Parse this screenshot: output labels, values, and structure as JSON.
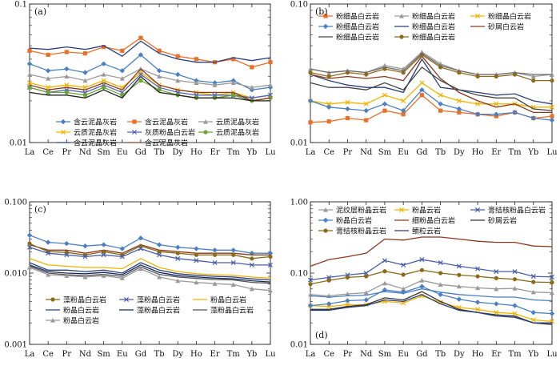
{
  "figure": {
    "background": "#ffffff"
  },
  "chart_data": [
    {
      "type": "line",
      "panel_label": "(a)",
      "log_scale": true,
      "ylim": [
        0.01,
        0.1
      ],
      "yticks": [
        "0.1",
        "0.01"
      ],
      "categories": [
        "La",
        "Ce",
        "Pr",
        "Nd",
        "Sm",
        "Eu",
        "Gd",
        "Tb",
        "Dy",
        "Ho",
        "Er",
        "Tm",
        "Yb",
        "Lu"
      ],
      "legend_position": "bottom",
      "series": [
        {
          "name": "含云泥晶灰岩",
          "color": "#4a7fc1",
          "marker": "diamond",
          "values": [
            0.037,
            0.033,
            0.034,
            0.032,
            0.037,
            0.033,
            0.043,
            0.033,
            0.031,
            0.028,
            0.027,
            0.028,
            0.024,
            0.025
          ]
        },
        {
          "name": "含云泥晶灰岩",
          "color": "#e8702a",
          "marker": "square",
          "values": [
            0.046,
            0.043,
            0.045,
            0.044,
            0.049,
            0.046,
            0.057,
            0.046,
            0.042,
            0.04,
            0.038,
            0.04,
            0.035,
            0.038
          ]
        },
        {
          "name": "云质泥晶灰岩",
          "color": "#9a9a9a",
          "marker": "triangle",
          "values": [
            0.031,
            0.029,
            0.03,
            0.028,
            0.031,
            0.029,
            0.034,
            0.03,
            0.028,
            0.027,
            0.026,
            0.027,
            0.025,
            0.026
          ]
        },
        {
          "name": "云质泥晶灰岩",
          "color": "#f0b400",
          "marker": "x",
          "values": [
            0.027,
            0.025,
            0.026,
            0.025,
            0.028,
            0.025,
            0.032,
            0.026,
            0.024,
            0.023,
            0.022,
            0.023,
            0.021,
            0.022
          ]
        },
        {
          "name": "灰质粉晶白云岩",
          "color": "#5566b0",
          "marker": "x",
          "values": [
            0.025,
            0.023,
            0.024,
            0.023,
            0.026,
            0.023,
            0.031,
            0.025,
            0.023,
            0.022,
            0.022,
            0.022,
            0.021,
            0.022
          ]
        },
        {
          "name": "云质泥晶灰岩",
          "color": "#6ca533",
          "marker": "circle",
          "values": [
            0.025,
            0.023,
            0.023,
            0.022,
            0.025,
            0.022,
            0.028,
            0.024,
            0.022,
            0.021,
            0.021,
            0.022,
            0.02,
            0.021
          ]
        },
        {
          "name": "含云泥晶灰岩",
          "color": "#2a3f7a",
          "marker": "none",
          "values": [
            0.048,
            0.047,
            0.049,
            0.047,
            0.05,
            0.042,
            0.054,
            0.044,
            0.04,
            0.038,
            0.038,
            0.041,
            0.039,
            0.041
          ]
        },
        {
          "name": "含云泥晶灰岩",
          "color": "#8b3a1e",
          "marker": "none",
          "values": [
            0.026,
            0.024,
            0.025,
            0.024,
            0.027,
            0.024,
            0.034,
            0.026,
            0.024,
            0.023,
            0.023,
            0.023,
            0.02,
            0.021
          ]
        },
        {
          "name": "",
          "color": "#222222",
          "marker": "none",
          "values": [
            0.023,
            0.022,
            0.022,
            0.021,
            0.024,
            0.021,
            0.03,
            0.023,
            0.022,
            0.021,
            0.021,
            0.021,
            0.02,
            0.02
          ]
        }
      ]
    },
    {
      "type": "line",
      "panel_label": "(b)",
      "log_scale": true,
      "ylim": [
        0.01,
        0.1
      ],
      "yticks": [
        "0.10",
        "0.01"
      ],
      "categories": [
        "La",
        "Ce",
        "Pr",
        "Nd",
        "Sm",
        "Eu",
        "Gd",
        "Tb",
        "Dy",
        "Ho",
        "Er",
        "Tm",
        "Yb",
        "Lu"
      ],
      "legend_position": "top",
      "series": [
        {
          "name": "粉细晶白云岩",
          "color": "#e8702a",
          "marker": "square",
          "values": [
            0.014,
            0.0142,
            0.015,
            0.0145,
            0.017,
            0.016,
            0.022,
            0.017,
            0.0165,
            0.016,
            0.0155,
            0.0165,
            0.015,
            0.0155
          ]
        },
        {
          "name": "粉细晶白云岩",
          "color": "#9a9a9a",
          "marker": "triangle",
          "values": [
            0.034,
            0.032,
            0.033,
            0.032,
            0.036,
            0.034,
            0.045,
            0.037,
            0.033,
            0.031,
            0.031,
            0.032,
            0.03,
            0.031
          ]
        },
        {
          "name": "粉细晶白云岩",
          "color": "#f0b400",
          "marker": "x",
          "values": [
            0.02,
            0.019,
            0.0195,
            0.019,
            0.022,
            0.02,
            0.027,
            0.022,
            0.02,
            0.019,
            0.019,
            0.019,
            0.018,
            0.018
          ]
        },
        {
          "name": "粉细晶白云岩",
          "color": "#4a7fc1",
          "marker": "diamond",
          "values": [
            0.02,
            0.018,
            0.0175,
            0.017,
            0.019,
            0.017,
            0.024,
            0.019,
            0.0175,
            0.016,
            0.016,
            0.0165,
            0.015,
            0.0145
          ]
        },
        {
          "name": "粉细晶白云岩",
          "color": "#2a3f7a",
          "marker": "none",
          "values": [
            0.031,
            0.028,
            0.026,
            0.025,
            0.025,
            0.023,
            0.04,
            0.025,
            0.024,
            0.023,
            0.022,
            0.0225,
            0.02,
            0.019
          ]
        },
        {
          "name": "砂屑白云岩",
          "color": "#8b3a1e",
          "marker": "none",
          "values": [
            0.031,
            0.029,
            0.03,
            0.029,
            0.03,
            0.028,
            0.042,
            0.029,
            0.023,
            0.02,
            0.018,
            0.019,
            0.0165,
            0.0165
          ]
        },
        {
          "name": "粉细晶白云岩",
          "color": "#444444",
          "marker": "none",
          "values": [
            0.027,
            0.025,
            0.025,
            0.024,
            0.027,
            0.024,
            0.035,
            0.028,
            0.024,
            0.022,
            0.021,
            0.021,
            0.0175,
            0.017
          ]
        },
        {
          "name": "粉细晶白云岩",
          "color": "#8b6a1a",
          "marker": "circle",
          "values": [
            0.032,
            0.03,
            0.032,
            0.031,
            0.034,
            0.032,
            0.043,
            0.035,
            0.032,
            0.03,
            0.03,
            0.031,
            0.028,
            0.028
          ]
        },
        {
          "name": "",
          "color": "#6b6b6b",
          "marker": "none",
          "values": [
            0.034,
            0.032,
            0.033,
            0.032,
            0.035,
            0.033,
            0.044,
            0.036,
            0.033,
            0.031,
            0.031,
            0.032,
            0.031,
            0.031
          ]
        }
      ]
    },
    {
      "type": "line",
      "panel_label": "(c)",
      "log_scale": true,
      "ylim": [
        0.001,
        0.1
      ],
      "yticks": [
        "0.100",
        "0.010",
        "0.001"
      ],
      "categories": [
        "La",
        "Ce",
        "Pr",
        "Nd",
        "Sm",
        "Eu",
        "Gd",
        "Tb",
        "Dy",
        "Ho",
        "Er",
        "Tm",
        "Yb",
        "Lu"
      ],
      "legend_position": "bottom",
      "series": [
        {
          "name": "",
          "color": "#4a7fc1",
          "marker": "diamond",
          "values": [
            0.034,
            0.027,
            0.026,
            0.024,
            0.025,
            0.022,
            0.031,
            0.025,
            0.023,
            0.022,
            0.021,
            0.021,
            0.019,
            0.019
          ]
        },
        {
          "name": "",
          "color": "#8b3a1e",
          "marker": "none",
          "values": [
            0.025,
            0.021,
            0.021,
            0.019,
            0.021,
            0.019,
            0.025,
            0.021,
            0.02,
            0.019,
            0.019,
            0.019,
            0.018,
            0.018
          ]
        },
        {
          "name": "藻粉晶白云岩",
          "color": "#8b6a1a",
          "marker": "circle",
          "values": [
            0.026,
            0.02,
            0.0195,
            0.018,
            0.02,
            0.018,
            0.024,
            0.02,
            0.019,
            0.018,
            0.018,
            0.018,
            0.016,
            0.017
          ]
        },
        {
          "name": "藻粉晶白云岩",
          "color": "#4a5fa8",
          "marker": "x",
          "values": [
            0.023,
            0.019,
            0.018,
            0.017,
            0.018,
            0.017,
            0.022,
            0.018,
            0.016,
            0.015,
            0.014,
            0.014,
            0.013,
            0.013
          ]
        },
        {
          "name": "粉晶白云岩",
          "color": "#f0b400",
          "marker": "none",
          "values": [
            0.016,
            0.013,
            0.0125,
            0.012,
            0.012,
            0.0115,
            0.016,
            0.012,
            0.0105,
            0.0098,
            0.0095,
            0.0093,
            0.0088,
            0.0085
          ]
        },
        {
          "name": "粉晶白云岩",
          "color": "#2a3f7a",
          "marker": "none",
          "values": [
            0.014,
            0.011,
            0.011,
            0.0105,
            0.011,
            0.01,
            0.014,
            0.011,
            0.0098,
            0.0093,
            0.009,
            0.0088,
            0.0083,
            0.008
          ]
        },
        {
          "name": "藻粉晶白云岩",
          "color": "#1a2a5a",
          "marker": "none",
          "values": [
            0.013,
            0.0105,
            0.01,
            0.0098,
            0.0102,
            0.0095,
            0.013,
            0.0102,
            0.0092,
            0.0088,
            0.0085,
            0.0083,
            0.0078,
            0.0075
          ]
        },
        {
          "name": "藻粉晶白云岩",
          "color": "#555555",
          "marker": "none",
          "values": [
            0.0125,
            0.01,
            0.0095,
            0.0092,
            0.0096,
            0.009,
            0.0122,
            0.0096,
            0.0088,
            0.0084,
            0.0081,
            0.008,
            0.0074,
            0.0072
          ]
        },
        {
          "name": "粉晶白云岩",
          "color": "#9a9a9a",
          "marker": "triangle",
          "values": [
            0.012,
            0.0095,
            0.0092,
            0.0088,
            0.0092,
            0.0085,
            0.0115,
            0.0088,
            0.0078,
            0.0074,
            0.0071,
            0.0069,
            0.006,
            0.0057
          ]
        }
      ]
    },
    {
      "type": "line",
      "panel_label": "(d)",
      "log_scale": true,
      "ylim": [
        0.01,
        1.0
      ],
      "yticks": [
        "1.00",
        "0.10",
        "0.01"
      ],
      "categories": [
        "La",
        "Ce",
        "Pr",
        "Nd",
        "Sm",
        "Eu",
        "Gd",
        "Tb",
        "Dy",
        "Ho",
        "Er",
        "Tm",
        "Yb",
        "Lu"
      ],
      "legend_position": "top",
      "series": [
        {
          "name": "泥纹层粉晶云岩",
          "color": "#9a9a9a",
          "marker": "triangle",
          "values": [
            0.05,
            0.048,
            0.051,
            0.053,
            0.072,
            0.06,
            0.079,
            0.069,
            0.065,
            0.062,
            0.06,
            0.061,
            0.054,
            0.053
          ]
        },
        {
          "name": "粉晶云岩",
          "color": "#f0b400",
          "marker": "x",
          "values": [
            0.035,
            0.034,
            0.036,
            0.036,
            0.04,
            0.038,
            0.048,
            0.039,
            0.033,
            0.031,
            0.028,
            0.027,
            0.022,
            0.021
          ]
        },
        {
          "name": "膏结核粉晶白云岩",
          "color": "#4a5fa8",
          "marker": "x",
          "values": [
            0.08,
            0.087,
            0.094,
            0.1,
            0.15,
            0.13,
            0.155,
            0.14,
            0.125,
            0.115,
            0.105,
            0.105,
            0.09,
            0.088
          ]
        },
        {
          "name": "粉晶白云岩",
          "color": "#4a7fc1",
          "marker": "diamond",
          "values": [
            0.035,
            0.037,
            0.041,
            0.042,
            0.058,
            0.054,
            0.065,
            0.05,
            0.043,
            0.039,
            0.037,
            0.035,
            0.028,
            0.027
          ]
        },
        {
          "name": "细粉晶白云岩",
          "color": "#8b3a1e",
          "marker": "none",
          "values": [
            0.125,
            0.155,
            0.17,
            0.19,
            0.3,
            0.29,
            0.32,
            0.32,
            0.3,
            0.28,
            0.27,
            0.27,
            0.24,
            0.235
          ]
        },
        {
          "name": "砂屑云岩",
          "color": "#333333",
          "marker": "none",
          "values": [
            0.031,
            0.031,
            0.034,
            0.036,
            0.045,
            0.042,
            0.055,
            0.04,
            0.031,
            0.028,
            0.026,
            0.025,
            0.02,
            0.019
          ]
        },
        {
          "name": "膏结核粉晶云岩",
          "color": "#8b6a1a",
          "marker": "circle",
          "values": [
            0.07,
            0.079,
            0.087,
            0.09,
            0.106,
            0.095,
            0.11,
            0.1,
            0.094,
            0.09,
            0.085,
            0.082,
            0.075,
            0.074
          ]
        },
        {
          "name": "鲕粒云岩",
          "color": "#2a3f7a",
          "marker": "none",
          "values": [
            0.03,
            0.03,
            0.033,
            0.035,
            0.042,
            0.04,
            0.05,
            0.037,
            0.03,
            0.028,
            0.025,
            0.024,
            0.02,
            0.02
          ]
        },
        {
          "name": "",
          "color": "#4a7fc1",
          "marker": "none",
          "values": [
            0.048,
            0.046,
            0.048,
            0.049,
            0.055,
            0.052,
            0.06,
            0.054,
            0.05,
            0.048,
            0.046,
            0.046,
            0.042,
            0.041
          ]
        }
      ]
    }
  ]
}
